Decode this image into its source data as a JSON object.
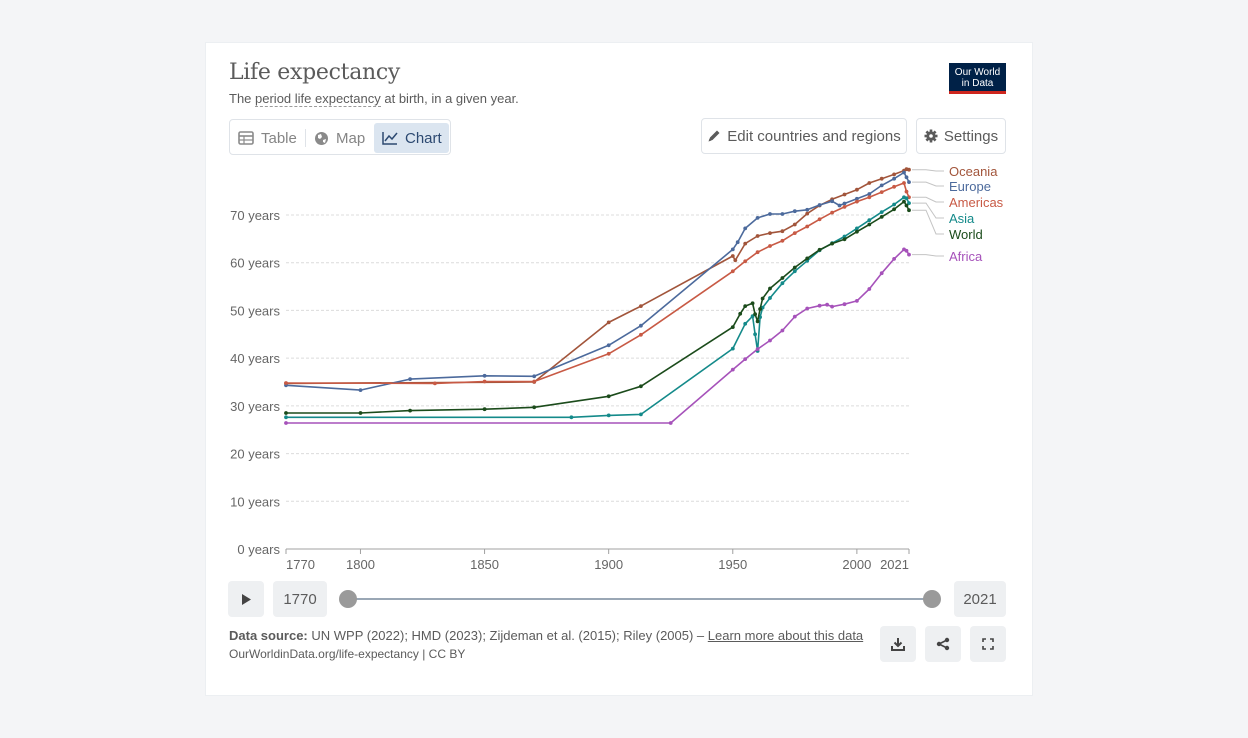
{
  "header": {
    "title": "Life expectancy",
    "subtitle_pre": "The ",
    "subtitle_link": "period life expectancy",
    "subtitle_post": " at birth, in a given year.",
    "logo_line1": "Our World",
    "logo_line2": "in Data"
  },
  "tabs": [
    {
      "label": "Table",
      "icon": "table-icon"
    },
    {
      "label": "Map",
      "icon": "globe-icon"
    },
    {
      "label": "Chart",
      "icon": "line-chart-icon",
      "active": true
    }
  ],
  "buttons": {
    "edit_label": "Edit countries and regions",
    "settings_label": "Settings"
  },
  "timeline": {
    "start_label": "1770",
    "end_label": "2021",
    "range_start": 1770,
    "range_end": 2021
  },
  "footer": {
    "source_label": "Data source:",
    "source_text": " UN WPP (2022); HMD (2023); Zijdeman et al. (2015); Riley (2005) – ",
    "learn_more": "Learn more about this data",
    "url": "OurWorldinData.org/life-expectancy | CC BY"
  },
  "colors": {
    "Oceania": "#a2553b",
    "Europe": "#4c6a9c",
    "Americas": "#c85a45",
    "Asia": "#148a8a",
    "World": "#1b4b1b",
    "Africa": "#a652ba",
    "grid": "#dcdcdc",
    "axis_text": "#666666"
  },
  "chart_data": {
    "type": "line",
    "title": "Life expectancy",
    "xlim": [
      1770,
      2021
    ],
    "ylim": [
      0,
      75
    ],
    "x_ticks": [
      1770,
      1800,
      1850,
      1900,
      1950,
      2000,
      2021
    ],
    "y_ticks": [
      {
        "value": 0,
        "label": "0 years"
      },
      {
        "value": 10,
        "label": "10 years"
      },
      {
        "value": 20,
        "label": "20 years"
      },
      {
        "value": 30,
        "label": "30 years"
      },
      {
        "value": 40,
        "label": "40 years"
      },
      {
        "value": 50,
        "label": "50 years"
      },
      {
        "value": 60,
        "label": "60 years"
      },
      {
        "value": 70,
        "label": "70 years"
      }
    ],
    "series": [
      {
        "name": "Oceania",
        "points": [
          [
            1770,
            34.7
          ],
          [
            1870,
            35.0
          ],
          [
            1900,
            47.5
          ],
          [
            1913,
            50.9
          ],
          [
            1950,
            61.4
          ],
          [
            1951,
            60.5
          ],
          [
            1955,
            64.0
          ],
          [
            1960,
            65.6
          ],
          [
            1965,
            66.2
          ],
          [
            1970,
            66.6
          ],
          [
            1975,
            68.0
          ],
          [
            1980,
            70.3
          ],
          [
            1985,
            72.0
          ],
          [
            1990,
            73.3
          ],
          [
            1995,
            74.3
          ],
          [
            2000,
            75.3
          ],
          [
            2005,
            76.7
          ],
          [
            2010,
            77.6
          ],
          [
            2015,
            78.5
          ],
          [
            2019,
            79.3
          ],
          [
            2020,
            79.6
          ],
          [
            2021,
            79.5
          ]
        ]
      },
      {
        "name": "Europe",
        "points": [
          [
            1770,
            34.3
          ],
          [
            1800,
            33.3
          ],
          [
            1820,
            35.6
          ],
          [
            1850,
            36.3
          ],
          [
            1870,
            36.2
          ],
          [
            1900,
            42.7
          ],
          [
            1913,
            46.8
          ],
          [
            1950,
            62.8
          ],
          [
            1952,
            64.3
          ],
          [
            1955,
            67.2
          ],
          [
            1960,
            69.4
          ],
          [
            1965,
            70.2
          ],
          [
            1970,
            70.2
          ],
          [
            1975,
            70.8
          ],
          [
            1980,
            71.1
          ],
          [
            1985,
            72.1
          ],
          [
            1990,
            72.9
          ],
          [
            1993,
            72.0
          ],
          [
            1995,
            72.4
          ],
          [
            2000,
            73.4
          ],
          [
            2005,
            74.4
          ],
          [
            2010,
            76.2
          ],
          [
            2015,
            77.6
          ],
          [
            2019,
            78.9
          ],
          [
            2020,
            77.9
          ],
          [
            2021,
            76.9
          ]
        ]
      },
      {
        "name": "Americas",
        "points": [
          [
            1770,
            34.8
          ],
          [
            1830,
            34.7
          ],
          [
            1850,
            35.1
          ],
          [
            1870,
            35.1
          ],
          [
            1900,
            40.9
          ],
          [
            1913,
            44.9
          ],
          [
            1950,
            58.2
          ],
          [
            1955,
            60.3
          ],
          [
            1960,
            62.2
          ],
          [
            1965,
            63.5
          ],
          [
            1970,
            64.6
          ],
          [
            1975,
            66.2
          ],
          [
            1980,
            67.6
          ],
          [
            1985,
            69.1
          ],
          [
            1990,
            70.5
          ],
          [
            1995,
            71.7
          ],
          [
            2000,
            72.8
          ],
          [
            2005,
            73.7
          ],
          [
            2010,
            74.8
          ],
          [
            2015,
            75.9
          ],
          [
            2019,
            76.7
          ],
          [
            2020,
            74.9
          ],
          [
            2021,
            73.7
          ]
        ]
      },
      {
        "name": "Asia",
        "points": [
          [
            1770,
            27.6
          ],
          [
            1885,
            27.6
          ],
          [
            1900,
            28.0
          ],
          [
            1913,
            28.2
          ],
          [
            1950,
            42.0
          ],
          [
            1955,
            47.2
          ],
          [
            1958,
            48.8
          ],
          [
            1959,
            45.0
          ],
          [
            1960,
            41.5
          ],
          [
            1961,
            48.6
          ],
          [
            1962,
            50.6
          ],
          [
            1965,
            52.6
          ],
          [
            1970,
            55.7
          ],
          [
            1975,
            58.2
          ],
          [
            1980,
            60.4
          ],
          [
            1985,
            62.6
          ],
          [
            1990,
            64.1
          ],
          [
            1995,
            65.5
          ],
          [
            2000,
            67.2
          ],
          [
            2005,
            68.9
          ],
          [
            2010,
            70.6
          ],
          [
            2015,
            72.2
          ],
          [
            2019,
            73.7
          ],
          [
            2020,
            73.5
          ],
          [
            2021,
            72.5
          ]
        ]
      },
      {
        "name": "World",
        "points": [
          [
            1770,
            28.5
          ],
          [
            1800,
            28.5
          ],
          [
            1820,
            29.0
          ],
          [
            1850,
            29.3
          ],
          [
            1870,
            29.7
          ],
          [
            1900,
            32.0
          ],
          [
            1913,
            34.1
          ],
          [
            1950,
            46.5
          ],
          [
            1953,
            49.3
          ],
          [
            1955,
            50.9
          ],
          [
            1958,
            51.5
          ],
          [
            1959,
            49.2
          ],
          [
            1960,
            47.7
          ],
          [
            1961,
            50.3
          ],
          [
            1962,
            52.5
          ],
          [
            1965,
            54.6
          ],
          [
            1970,
            56.8
          ],
          [
            1975,
            59.0
          ],
          [
            1980,
            60.9
          ],
          [
            1985,
            62.7
          ],
          [
            1990,
            64.0
          ],
          [
            1995,
            64.9
          ],
          [
            2000,
            66.5
          ],
          [
            2005,
            68.0
          ],
          [
            2010,
            69.6
          ],
          [
            2015,
            71.2
          ],
          [
            2019,
            72.8
          ],
          [
            2020,
            72.0
          ],
          [
            2021,
            71.0
          ]
        ]
      },
      {
        "name": "Africa",
        "points": [
          [
            1770,
            26.4
          ],
          [
            1925,
            26.4
          ],
          [
            1950,
            37.6
          ],
          [
            1955,
            39.8
          ],
          [
            1960,
            41.9
          ],
          [
            1965,
            43.7
          ],
          [
            1970,
            45.8
          ],
          [
            1975,
            48.7
          ],
          [
            1980,
            50.4
          ],
          [
            1985,
            51.0
          ],
          [
            1988,
            51.2
          ],
          [
            1990,
            50.8
          ],
          [
            1995,
            51.3
          ],
          [
            2000,
            52.0
          ],
          [
            2005,
            54.5
          ],
          [
            2010,
            57.8
          ],
          [
            2015,
            60.8
          ],
          [
            2019,
            62.8
          ],
          [
            2020,
            62.5
          ],
          [
            2021,
            61.7
          ]
        ]
      }
    ],
    "legend": [
      "Oceania",
      "Europe",
      "Americas",
      "Asia",
      "World",
      "Africa"
    ]
  }
}
